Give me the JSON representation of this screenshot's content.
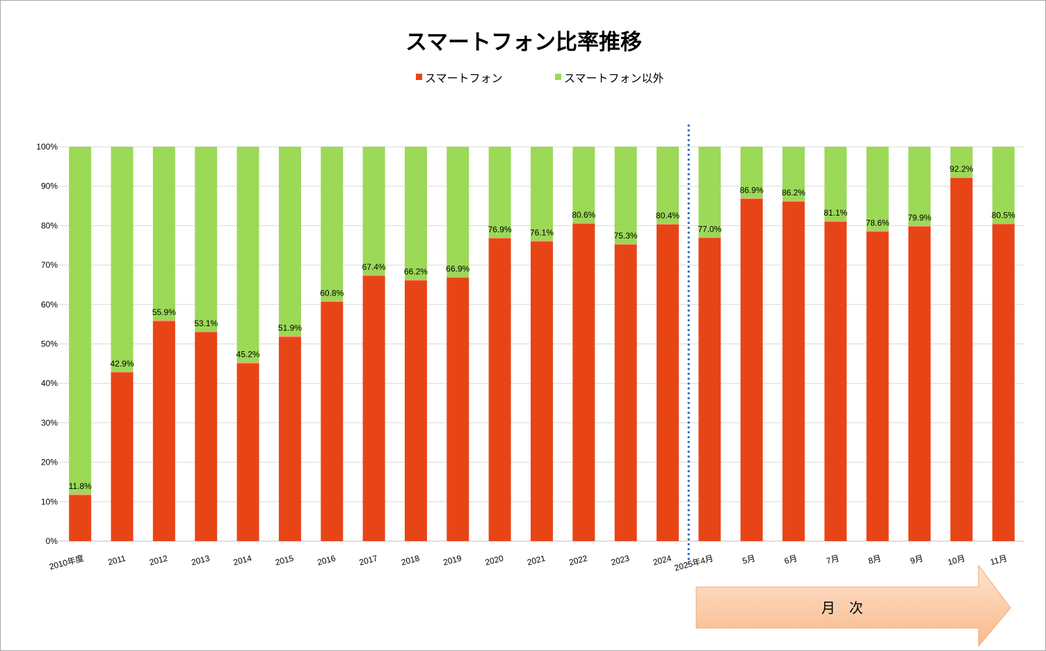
{
  "chart_data": {
    "type": "bar",
    "stacked": true,
    "title": "スマートフォン比率推移",
    "categories": [
      "2010年度",
      "2011",
      "2012",
      "2013",
      "2014",
      "2015",
      "2016",
      "2017",
      "2018",
      "2019",
      "2020",
      "2021",
      "2022",
      "2023",
      "2024",
      "2025年4月",
      "5月",
      "6月",
      "7月",
      "8月",
      "9月",
      "10月",
      "11月"
    ],
    "series": [
      {
        "name": "スマートフォン",
        "color": "#e84517",
        "values": [
          11.8,
          42.9,
          55.9,
          53.1,
          45.2,
          51.9,
          60.8,
          67.4,
          66.2,
          66.9,
          76.9,
          76.1,
          80.6,
          75.3,
          80.4,
          77.0,
          86.9,
          86.2,
          81.1,
          78.6,
          79.9,
          92.2,
          80.5
        ]
      },
      {
        "name": "スマートフォン以外",
        "color": "#9bd957",
        "values": [
          88.2,
          57.1,
          44.1,
          46.9,
          54.8,
          48.1,
          39.2,
          32.6,
          33.8,
          33.1,
          23.1,
          23.9,
          19.4,
          24.7,
          19.6,
          23.0,
          13.1,
          13.8,
          18.9,
          21.4,
          20.1,
          7.8,
          19.5
        ]
      }
    ],
    "data_labels": [
      "11.8%",
      "42.9%",
      "55.9%",
      "53.1%",
      "45.2%",
      "51.9%",
      "60.8%",
      "67.4%",
      "66.2%",
      "66.9%",
      "76.9%",
      "76.1%",
      "80.6%",
      "75.3%",
      "80.4%",
      "77.0%",
      "86.9%",
      "86.2%",
      "81.1%",
      "78.6%",
      "79.9%",
      "92.2%",
      "80.5%"
    ],
    "ylim": [
      0,
      100
    ],
    "yticks": [
      "0%",
      "10%",
      "20%",
      "30%",
      "40%",
      "50%",
      "60%",
      "70%",
      "80%",
      "90%",
      "100%"
    ],
    "grid": true,
    "legend_position": "top",
    "divider_after_category": "2024",
    "monthly_arrow_label": "月　次"
  }
}
